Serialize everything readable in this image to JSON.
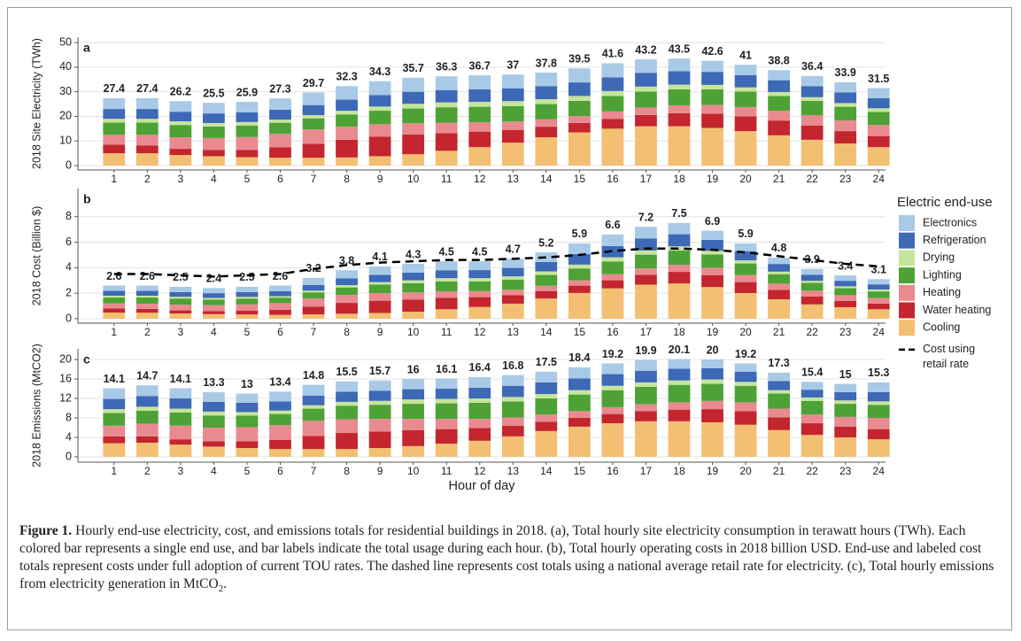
{
  "chart_data": [
    {
      "type": "bar",
      "stacked": true,
      "panel_label": "a",
      "y_label": "2018 Site Electricity (TWh)",
      "categories": [
        1,
        2,
        3,
        4,
        5,
        6,
        7,
        8,
        9,
        10,
        11,
        12,
        13,
        14,
        15,
        16,
        17,
        18,
        19,
        20,
        21,
        22,
        23,
        24
      ],
      "ylim": [
        -1.8,
        52.2
      ],
      "yticks": [
        0,
        10,
        20,
        30,
        40,
        50
      ],
      "grid": true,
      "totals": [
        27.4,
        27.4,
        26.2,
        25.5,
        25.9,
        27.3,
        29.7,
        32.3,
        34.3,
        35.7,
        36.3,
        36.7,
        37,
        37.8,
        39.5,
        41.6,
        43.2,
        43.5,
        42.6,
        41,
        38.8,
        36.4,
        33.9,
        31.5
      ],
      "series": [
        {
          "color": "#f3bf72",
          "values": [
            5,
            5,
            4.3,
            3.8,
            3.4,
            3.2,
            3.2,
            3.3,
            3.8,
            4.6,
            6,
            7.5,
            9.3,
            11.5,
            13.5,
            15,
            16,
            16,
            15.3,
            14,
            12.3,
            10.5,
            9,
            7.5
          ]
        },
        {
          "color": "#c3262e",
          "values": [
            3.5,
            3.2,
            2.5,
            2.5,
            3,
            4.2,
            5.7,
            7.2,
            8,
            8,
            7.2,
            6.3,
            5.2,
            4.3,
            3.8,
            4,
            4.6,
            5.3,
            5.8,
            6,
            6,
            5.8,
            5,
            4.5
          ]
        },
        {
          "color": "#e98a90",
          "values": [
            4,
            4.3,
            4.7,
            4.9,
            5.2,
            5.5,
            5.8,
            5.3,
            5,
            4.6,
            4.2,
            3.8,
            3.4,
            3,
            2.8,
            3,
            3,
            3.2,
            3.5,
            3.8,
            4,
            4.2,
            4.4,
            4.5
          ]
        },
        {
          "color": "#4ea235",
          "values": [
            5,
            5,
            5,
            4.7,
            4.7,
            4.5,
            4.5,
            5,
            5.5,
            6,
            6.3,
            6.3,
            6.3,
            6.2,
            6.2,
            6.3,
            6.5,
            6.5,
            6.4,
            6.3,
            6,
            5.8,
            5.5,
            5.3
          ]
        },
        {
          "color": "#c6e59c",
          "values": [
            1.5,
            1.5,
            1.5,
            1.4,
            1.4,
            1.3,
            1.3,
            1.5,
            1.7,
            1.9,
            2,
            2,
            2,
            2,
            2,
            2,
            2,
            1.9,
            1.8,
            1.7,
            1.6,
            1.5,
            1.5,
            1.5
          ]
        },
        {
          "color": "#3d69b6",
          "values": [
            4,
            4,
            3.9,
            3.9,
            3.9,
            4,
            4.1,
            4.5,
            4.7,
            4.9,
            5,
            5.1,
            5.2,
            5.3,
            5.5,
            5.6,
            5.6,
            5.5,
            5.3,
            5,
            4.8,
            4.5,
            4.3,
            4.1
          ]
        },
        {
          "color": "#a8cae7",
          "values": [
            4.4,
            4.4,
            4.3,
            4.3,
            4.3,
            4.6,
            5.1,
            5.5,
            5.6,
            5.7,
            5.6,
            5.7,
            5.6,
            5.5,
            5.7,
            5.7,
            5.5,
            5.1,
            4.5,
            4.2,
            4.1,
            4.1,
            4.2,
            4.1
          ]
        }
      ]
    },
    {
      "type": "bar",
      "stacked": true,
      "panel_label": "b",
      "y_label": "2018 Cost (Billion $)",
      "categories": [
        1,
        2,
        3,
        4,
        5,
        6,
        7,
        8,
        9,
        10,
        11,
        12,
        13,
        14,
        15,
        16,
        17,
        18,
        19,
        20,
        21,
        22,
        23,
        24
      ],
      "ylim": [
        -0.35,
        10.2
      ],
      "yticks": [
        0,
        2,
        4,
        6,
        8
      ],
      "grid": true,
      "legend_title": "Electric end-use",
      "totals": [
        2.6,
        2.6,
        2.5,
        2.4,
        2.5,
        2.6,
        3.2,
        3.8,
        4.1,
        4.3,
        4.5,
        4.5,
        4.7,
        5.2,
        5.9,
        6.6,
        7.2,
        7.5,
        6.9,
        5.9,
        4.8,
        3.9,
        3.4,
        3.1
      ],
      "series": [
        {
          "name": "Cooling",
          "color": "#f3bf72",
          "values": [
            0.48,
            0.47,
            0.41,
            0.36,
            0.33,
            0.3,
            0.34,
            0.39,
            0.45,
            0.55,
            0.74,
            0.92,
            1.18,
            1.58,
            2.02,
            2.38,
            2.67,
            2.76,
            2.48,
            2.01,
            1.52,
            1.12,
            0.9,
            0.74
          ]
        },
        {
          "name": "Water heating",
          "color": "#c3262e",
          "values": [
            0.33,
            0.3,
            0.24,
            0.24,
            0.29,
            0.4,
            0.61,
            0.85,
            0.96,
            0.96,
            0.89,
            0.77,
            0.66,
            0.59,
            0.57,
            0.63,
            0.77,
            0.91,
            0.94,
            0.86,
            0.74,
            0.62,
            0.5,
            0.44
          ]
        },
        {
          "name": "Heating",
          "color": "#e98a90",
          "values": [
            0.38,
            0.41,
            0.45,
            0.46,
            0.5,
            0.52,
            0.63,
            0.62,
            0.6,
            0.55,
            0.52,
            0.47,
            0.43,
            0.41,
            0.42,
            0.48,
            0.5,
            0.55,
            0.57,
            0.55,
            0.49,
            0.45,
            0.44,
            0.44
          ]
        },
        {
          "name": "Lighting",
          "color": "#4ea235",
          "values": [
            0.47,
            0.48,
            0.48,
            0.44,
            0.45,
            0.43,
            0.48,
            0.59,
            0.66,
            0.72,
            0.78,
            0.77,
            0.8,
            0.85,
            0.93,
            1.0,
            1.08,
            1.12,
            1.04,
            0.91,
            0.74,
            0.62,
            0.55,
            0.52
          ]
        },
        {
          "name": "Drying",
          "color": "#c6e59c",
          "values": [
            0.14,
            0.14,
            0.14,
            0.13,
            0.14,
            0.12,
            0.14,
            0.18,
            0.2,
            0.23,
            0.25,
            0.25,
            0.25,
            0.28,
            0.3,
            0.32,
            0.33,
            0.33,
            0.29,
            0.24,
            0.2,
            0.16,
            0.15,
            0.15
          ]
        },
        {
          "name": "Refrigeration",
          "color": "#3d69b6",
          "values": [
            0.38,
            0.38,
            0.37,
            0.37,
            0.38,
            0.38,
            0.44,
            0.53,
            0.56,
            0.6,
            0.62,
            0.63,
            0.66,
            0.73,
            0.82,
            0.89,
            0.93,
            0.95,
            0.86,
            0.72,
            0.6,
            0.48,
            0.43,
            0.4
          ]
        },
        {
          "name": "Electronics",
          "color": "#a8cae7",
          "values": [
            0.42,
            0.42,
            0.41,
            0.4,
            0.41,
            0.45,
            0.56,
            0.64,
            0.67,
            0.69,
            0.7,
            0.69,
            0.72,
            0.76,
            0.84,
            0.9,
            0.92,
            0.88,
            0.72,
            0.61,
            0.51,
            0.45,
            0.43,
            0.41
          ]
        },
        {
          "name": "Cost using retail rate",
          "type": "line",
          "color": "#000000",
          "dash": true,
          "values": [
            3.5,
            3.5,
            3.4,
            3.3,
            3.4,
            3.5,
            3.9,
            4.2,
            4.4,
            4.5,
            4.6,
            4.6,
            4.7,
            4.8,
            5.0,
            5.3,
            5.5,
            5.5,
            5.4,
            5.2,
            4.9,
            4.6,
            4.3,
            4.1
          ]
        }
      ]
    },
    {
      "type": "bar",
      "stacked": true,
      "panel_label": "c",
      "y_label": "2018 Emissions (MtCO2)",
      "x_label": "Hour of day",
      "categories": [
        1,
        2,
        3,
        4,
        5,
        6,
        7,
        8,
        9,
        10,
        11,
        12,
        13,
        14,
        15,
        16,
        17,
        18,
        19,
        20,
        21,
        22,
        23,
        24
      ],
      "ylim": [
        -1.1,
        22.2
      ],
      "yticks": [
        0,
        4,
        8,
        12,
        16,
        20
      ],
      "grid": true,
      "totals": [
        14.1,
        14.7,
        14.1,
        13.3,
        13,
        13.4,
        14.8,
        15.5,
        15.7,
        16,
        16.1,
        16.4,
        16.8,
        17.5,
        18.4,
        19.2,
        19.9,
        20.1,
        20,
        19.2,
        17.3,
        15.4,
        15,
        15.3
      ],
      "series": [
        {
          "color": "#f3bf72",
          "values": [
            2.8,
            2.9,
            2.5,
            2.1,
            1.8,
            1.6,
            1.6,
            1.6,
            1.8,
            2.2,
            2.7,
            3.3,
            4.2,
            5.3,
            6.2,
            6.9,
            7.3,
            7.3,
            7.1,
            6.6,
            5.5,
            4.5,
            4,
            3.6
          ]
        },
        {
          "color": "#c3262e",
          "values": [
            1.4,
            1.3,
            1.1,
            1.1,
            1.4,
            1.9,
            2.7,
            3.3,
            3.4,
            3.3,
            3,
            2.6,
            2.2,
            1.9,
            1.8,
            1.9,
            2.1,
            2.4,
            2.7,
            2.8,
            2.6,
            2.4,
            2.2,
            2.1
          ]
        },
        {
          "color": "#e98a90",
          "values": [
            2.2,
            2.6,
            2.8,
            2.8,
            2.9,
            3,
            3.1,
            2.8,
            2.6,
            2.3,
            2.1,
            1.9,
            1.7,
            1.5,
            1.4,
            1.4,
            1.4,
            1.5,
            1.7,
            1.8,
            1.8,
            1.8,
            2,
            2.3
          ]
        },
        {
          "color": "#4ea235",
          "values": [
            2.6,
            2.7,
            2.7,
            2.5,
            2.4,
            2.3,
            2.5,
            2.8,
            2.9,
            3.1,
            3.2,
            3.3,
            3.3,
            3.3,
            3.4,
            3.5,
            3.6,
            3.6,
            3.5,
            3.4,
            3.1,
            2.8,
            2.7,
            2.7
          ]
        },
        {
          "color": "#c6e59c",
          "values": [
            0.8,
            0.8,
            0.8,
            0.8,
            0.7,
            0.7,
            0.7,
            0.8,
            0.8,
            0.9,
            0.9,
            0.9,
            0.9,
            0.9,
            0.9,
            0.9,
            0.9,
            0.9,
            0.9,
            0.8,
            0.7,
            0.7,
            0.7,
            0.7
          ]
        },
        {
          "color": "#3d69b6",
          "values": [
            2.1,
            2.2,
            2.1,
            2,
            1.9,
            1.9,
            2,
            2.1,
            2.1,
            2.1,
            2.1,
            2.2,
            2.3,
            2.4,
            2.4,
            2.4,
            2.4,
            2.4,
            2.3,
            2.1,
            1.9,
            1.6,
            1.7,
            1.9
          ]
        },
        {
          "color": "#a8cae7",
          "values": [
            2.2,
            2.2,
            2.1,
            2,
            1.9,
            2,
            2.2,
            2.1,
            2.1,
            2.1,
            2.1,
            2.2,
            2.2,
            2.2,
            2.3,
            2.2,
            2.2,
            2,
            1.8,
            1.7,
            1.7,
            1.6,
            1.7,
            2
          ]
        }
      ]
    }
  ],
  "caption": {
    "label": "Figure 1.",
    "text": "Hourly end-use electricity, cost, and emissions totals for residential buildings in 2018. (a), Total hourly site electricity consumption in terawatt hours (TWh). Each colored bar represents a single end use, and bar labels indicate the total usage during each hour. (b), Total hourly operating costs in 2018 billion USD. End-use and labeled cost totals represent costs under full adoption of current TOU rates. The dashed line represents cost totals using a national average retail rate for electricity. (c), Total hourly emissions from electricity generation in MtCO",
    "subscript": "2",
    "end": "."
  }
}
